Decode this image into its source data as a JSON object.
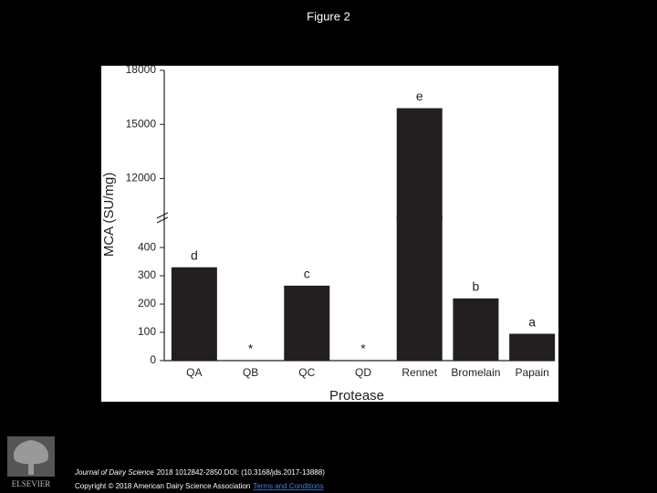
{
  "slide_title": "Figure 2",
  "chart_data": {
    "type": "broken-bar",
    "categories": [
      "QA",
      "QB",
      "QC",
      "QD",
      "Rennet",
      "Bromelain",
      "Papain"
    ],
    "values": [
      330,
      null,
      265,
      null,
      15900,
      220,
      95
    ],
    "annotations": [
      "d",
      "*",
      "c",
      "*",
      "e",
      "b",
      "a"
    ],
    "color": "#231f20",
    "x_label": "Protease",
    "y_label": "MCA (SU/mg)",
    "lower": {
      "ylim": [
        0,
        510
      ],
      "yticks": [
        0,
        100,
        200,
        300,
        400
      ]
    },
    "upper": {
      "ylim": [
        9700,
        18000
      ],
      "yticks": [
        12000,
        15000,
        18000
      ]
    }
  },
  "footer": {
    "journal": "Journal of Dairy Science",
    "citation": "2018 1012842-2850 DOI: (10.3168/jds.2017-13888)",
    "copyright": "Copyright © 2018 American Dairy Science Association",
    "link": "Terms and Conditions",
    "publisher": "ELSEVIER"
  }
}
